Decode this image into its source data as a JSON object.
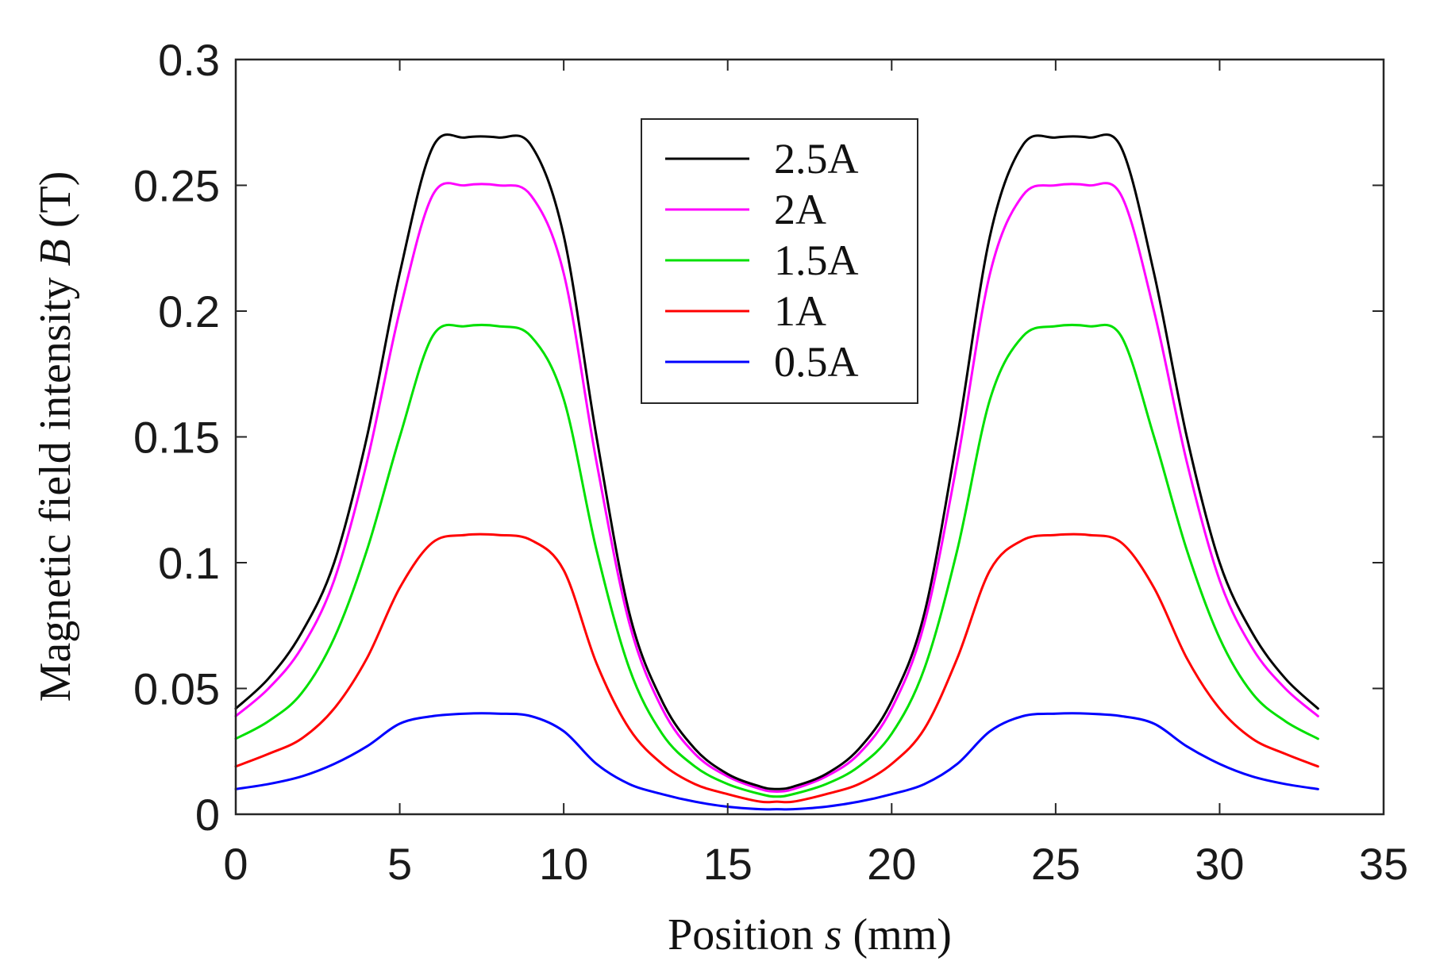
{
  "chart_data": {
    "type": "line",
    "title": "",
    "xlabel": "Position s (mm)",
    "xlabel_parts": {
      "before": "Position ",
      "symbol": "s",
      "after": " (mm)"
    },
    "ylabel": "Magnetic field intensity B (T)",
    "ylabel_parts": {
      "before": "Magnetic field intensity ",
      "symbol": "B",
      "after": " (T)"
    },
    "xlim": [
      0,
      35
    ],
    "ylim": [
      0,
      0.3
    ],
    "xticks": [
      0,
      5,
      10,
      15,
      20,
      25,
      30,
      35
    ],
    "xtick_labels": [
      "0",
      "5",
      "10",
      "15",
      "20",
      "25",
      "30",
      "35"
    ],
    "yticks": [
      0,
      0.05,
      0.1,
      0.15,
      0.2,
      0.25,
      0.3
    ],
    "ytick_labels": [
      "0",
      "0.05",
      "0.1",
      "0.15",
      "0.2",
      "0.25",
      "0.3"
    ],
    "grid": false,
    "legend_position": "top-center",
    "x": [
      0,
      1,
      2,
      3,
      4,
      5,
      6,
      7,
      8,
      9,
      10,
      11,
      12,
      13,
      14,
      15,
      16,
      16.5,
      17,
      18,
      19,
      20,
      21,
      22,
      23,
      24,
      25,
      26,
      27,
      28,
      29,
      30,
      31,
      32,
      33
    ],
    "series": [
      {
        "name": "2.5A",
        "color": "#000000",
        "values": [
          0.042,
          0.054,
          0.072,
          0.1,
          0.15,
          0.215,
          0.265,
          0.269,
          0.269,
          0.266,
          0.23,
          0.15,
          0.08,
          0.045,
          0.026,
          0.016,
          0.011,
          0.01,
          0.011,
          0.016,
          0.026,
          0.045,
          0.08,
          0.15,
          0.23,
          0.266,
          0.269,
          0.269,
          0.265,
          0.215,
          0.15,
          0.1,
          0.072,
          0.054,
          0.042
        ]
      },
      {
        "name": "2A",
        "color": "#ff00ff",
        "values": [
          0.039,
          0.05,
          0.066,
          0.093,
          0.14,
          0.2,
          0.246,
          0.25,
          0.25,
          0.246,
          0.215,
          0.14,
          0.076,
          0.042,
          0.024,
          0.015,
          0.01,
          0.009,
          0.01,
          0.015,
          0.024,
          0.042,
          0.076,
          0.14,
          0.215,
          0.246,
          0.25,
          0.25,
          0.246,
          0.2,
          0.14,
          0.093,
          0.066,
          0.05,
          0.039
        ]
      },
      {
        "name": "1.5A",
        "color": "#00e000",
        "values": [
          0.03,
          0.037,
          0.048,
          0.07,
          0.105,
          0.15,
          0.19,
          0.194,
          0.194,
          0.19,
          0.165,
          0.105,
          0.058,
          0.032,
          0.019,
          0.012,
          0.008,
          0.007,
          0.008,
          0.012,
          0.019,
          0.032,
          0.058,
          0.105,
          0.165,
          0.19,
          0.194,
          0.194,
          0.19,
          0.15,
          0.105,
          0.07,
          0.048,
          0.037,
          0.03
        ]
      },
      {
        "name": "1A",
        "color": "#ff0000",
        "values": [
          0.019,
          0.024,
          0.03,
          0.042,
          0.062,
          0.09,
          0.108,
          0.111,
          0.111,
          0.109,
          0.097,
          0.06,
          0.034,
          0.02,
          0.012,
          0.008,
          0.005,
          0.005,
          0.005,
          0.008,
          0.012,
          0.02,
          0.034,
          0.062,
          0.097,
          0.109,
          0.111,
          0.111,
          0.108,
          0.09,
          0.062,
          0.042,
          0.03,
          0.024,
          0.019
        ]
      },
      {
        "name": "0.5A",
        "color": "#0000ff",
        "values": [
          0.01,
          0.012,
          0.015,
          0.02,
          0.027,
          0.036,
          0.039,
          0.04,
          0.04,
          0.039,
          0.033,
          0.02,
          0.012,
          0.008,
          0.005,
          0.003,
          0.002,
          0.002,
          0.002,
          0.003,
          0.005,
          0.008,
          0.012,
          0.02,
          0.033,
          0.039,
          0.04,
          0.04,
          0.039,
          0.036,
          0.027,
          0.02,
          0.015,
          0.012,
          0.01
        ]
      }
    ]
  }
}
